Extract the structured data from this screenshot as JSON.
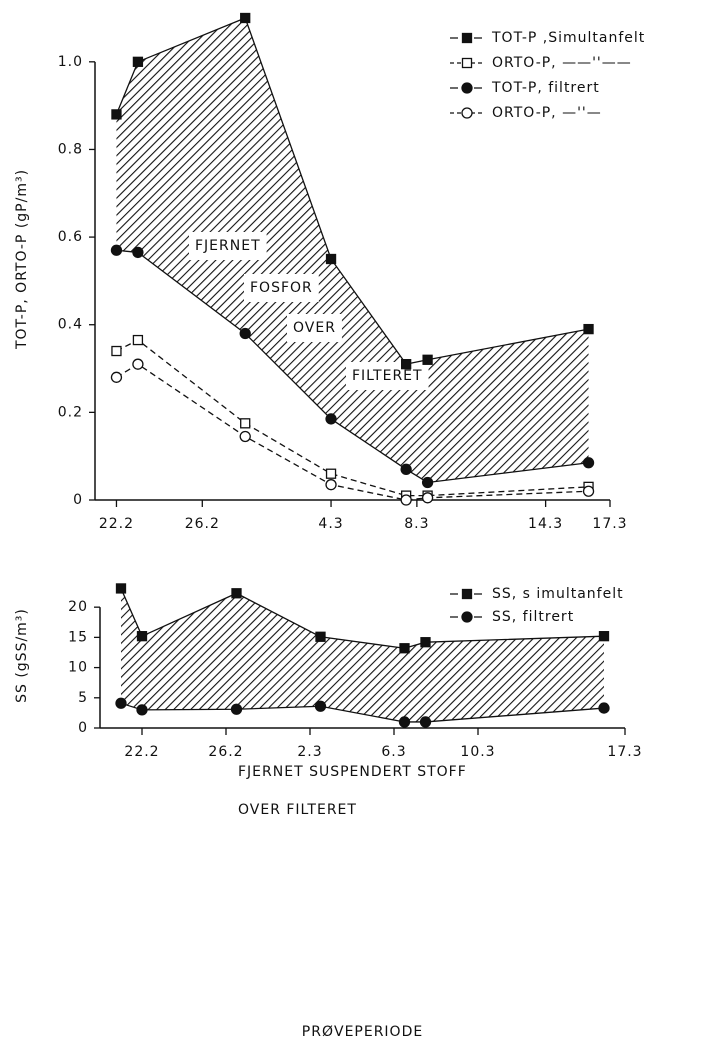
{
  "chart_data": [
    {
      "type": "line",
      "ylabel": "TOT-P,  ORTO-P  (gP/m³)",
      "x": [
        53,
        54,
        59,
        63,
        66.5,
        67.5,
        75
      ],
      "xlim": [
        52,
        76
      ],
      "xticks": [
        {
          "value": 53,
          "label": "22.2"
        },
        {
          "value": 57,
          "label": "26.2"
        },
        {
          "value": 63,
          "label": "4.3"
        },
        {
          "value": 67,
          "label": "8.3"
        },
        {
          "value": 73,
          "label": "14.3"
        },
        {
          "value": 76,
          "label": "17.3"
        }
      ],
      "ylim": [
        0,
        1.1
      ],
      "yticks": [
        0,
        0.2,
        0.4,
        0.6,
        0.8,
        {
          "value": 1,
          "label": "1.0"
        }
      ],
      "series": [
        {
          "name": "TOT-P ,Simultanfelt",
          "color": "#111111",
          "marker": "square",
          "filled": true,
          "dashed": false,
          "values": [
            0.88,
            1.0,
            1.1,
            0.55,
            0.31,
            0.32,
            0.39
          ]
        },
        {
          "name": "ORTO-P, ——''——",
          "color": "#111111",
          "marker": "square",
          "filled": false,
          "dashed": true,
          "values": [
            0.34,
            0.365,
            0.175,
            0.06,
            0.01,
            0.01,
            0.03
          ]
        },
        {
          "name": "TOT-P,  filtrert",
          "color": "#111111",
          "marker": "circle",
          "filled": true,
          "dashed": false,
          "values": [
            0.57,
            0.565,
            0.38,
            0.185,
            0.07,
            0.04,
            0.085
          ]
        },
        {
          "name": "ORTO-P, —''—",
          "color": "#111111",
          "marker": "circle",
          "filled": false,
          "dashed": true,
          "values": [
            0.28,
            0.31,
            0.145,
            0.035,
            0,
            0.005,
            0.02
          ]
        }
      ],
      "annotations": [
        "FJERNET",
        "FOSFOR",
        "OVER",
        "FILTERET"
      ]
    },
    {
      "type": "line",
      "ylabel": "SS  (gSS/m³)",
      "xlabel": "PRØVEPERIODE",
      "x": [
        52,
        53,
        57.5,
        61.5,
        65.5,
        66.5,
        75
      ],
      "xlim": [
        51,
        76
      ],
      "xticks": [
        {
          "value": 53,
          "label": "22.2"
        },
        {
          "value": 57,
          "label": "26.2"
        },
        {
          "value": 61,
          "label": "2.3"
        },
        {
          "value": 65,
          "label": "6.3"
        },
        {
          "value": 69,
          "label": "10.3"
        },
        {
          "value": 76,
          "label": "17.3"
        }
      ],
      "ylim": [
        0,
        24
      ],
      "yticks": [
        0,
        5,
        10,
        15,
        20
      ],
      "series": [
        {
          "name": "SS, s imultanfelt",
          "color": "#111111",
          "marker": "square",
          "filled": true,
          "dashed": false,
          "values": [
            23.1,
            15.2,
            22.3,
            15.1,
            13.2,
            14.2,
            15.2
          ]
        },
        {
          "name": "SS, filtrert",
          "color": "#111111",
          "marker": "circle",
          "filled": true,
          "dashed": false,
          "values": [
            4.1,
            3.0,
            3.1,
            3.6,
            1.0,
            1.0,
            3.3
          ]
        }
      ],
      "annotations": [
        "FJERNET SUSPENDERT STOFF",
        "OVER FILTERET"
      ]
    }
  ]
}
